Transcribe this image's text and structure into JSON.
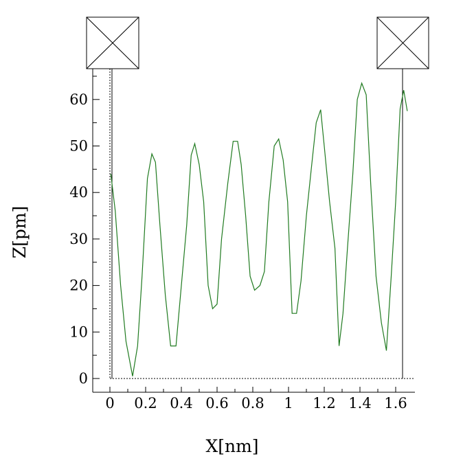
{
  "chart_data": {
    "type": "line",
    "title": "",
    "xlabel": "X[nm]",
    "ylabel": "Z[pm]",
    "xlim": [
      -0.1,
      1.7
    ],
    "ylim": [
      -3,
      63
    ],
    "x_ticks": [
      0,
      0.2,
      0.4,
      0.6,
      0.8,
      1,
      1.2,
      1.4,
      1.6
    ],
    "x_tick_labels": [
      "0",
      "0.2",
      "0.4",
      "0.6",
      "0.8",
      "1",
      "1.2",
      "1.4",
      "1.6"
    ],
    "y_ticks": [
      0,
      10,
      20,
      30,
      40,
      50,
      60
    ],
    "y_tick_labels": [
      "0",
      "10",
      "20",
      "30",
      "40",
      "50",
      "60"
    ],
    "grid": false,
    "zero_line": true,
    "cursor_markers": [
      0.005,
      1.635
    ],
    "series": [
      {
        "color": "#1f7a1f",
        "x": [
          0.005,
          0.03,
          0.06,
          0.09,
          0.127,
          0.155,
          0.18,
          0.21,
          0.235,
          0.255,
          0.28,
          0.31,
          0.34,
          0.37,
          0.4,
          0.43,
          0.455,
          0.475,
          0.5,
          0.525,
          0.55,
          0.575,
          0.6,
          0.625,
          0.66,
          0.69,
          0.715,
          0.735,
          0.76,
          0.785,
          0.81,
          0.84,
          0.865,
          0.89,
          0.92,
          0.945,
          0.97,
          0.995,
          1.02,
          1.045,
          1.07,
          1.1,
          1.13,
          1.155,
          1.18,
          1.2,
          1.23,
          1.26,
          1.283,
          1.305,
          1.33,
          1.36,
          1.385,
          1.41,
          1.435,
          1.46,
          1.49,
          1.52,
          1.548,
          1.575,
          1.6,
          1.625,
          1.645,
          1.665
        ],
        "y": [
          44,
          36,
          20,
          8,
          0.5,
          7,
          22,
          43,
          48.3,
          46.5,
          33,
          18,
          7,
          7,
          20,
          33,
          48,
          50.5,
          46,
          38,
          20,
          15,
          16,
          30,
          42,
          51,
          51,
          46,
          35,
          22,
          19,
          20,
          23,
          38,
          50,
          51.5,
          47,
          38,
          14,
          14,
          21,
          35,
          46,
          55,
          57.8,
          50,
          38,
          28,
          7,
          14,
          28,
          44,
          60,
          63.5,
          61,
          42,
          22,
          12,
          6,
          22,
          38,
          58,
          62,
          57.5
        ]
      }
    ]
  }
}
